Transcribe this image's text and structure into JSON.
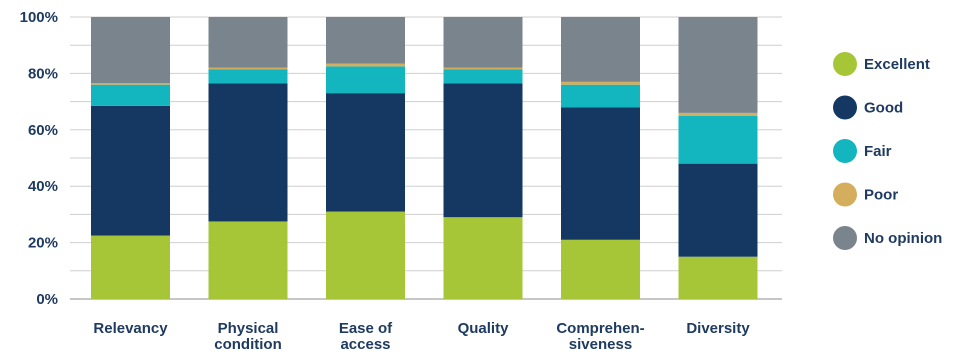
{
  "chart_data": {
    "type": "bar",
    "stacked": true,
    "categories": [
      [
        "Relevancy"
      ],
      [
        "Physical",
        "condition"
      ],
      [
        "Ease of",
        "access"
      ],
      [
        "Quality"
      ],
      [
        "Comprehen-",
        "siveness"
      ],
      [
        "Diversity"
      ]
    ],
    "ylim": [
      0,
      100
    ],
    "yticks": [
      "0%",
      "20%",
      "40%",
      "60%",
      "80%",
      "100%"
    ],
    "grid": true,
    "legend_position": "right",
    "series": [
      {
        "name": "Excellent",
        "color": "#a6c638",
        "values": [
          22.5,
          27.5,
          31,
          29,
          21,
          15
        ]
      },
      {
        "name": "Good",
        "color": "#143862",
        "values": [
          46,
          49,
          42,
          47.5,
          47,
          33
        ]
      },
      {
        "name": "Fair",
        "color": "#13b5bf",
        "values": [
          7.5,
          5,
          9.5,
          5,
          8,
          17
        ]
      },
      {
        "name": "Poor",
        "color": "#d4ad5d",
        "values": [
          0.5,
          0.5,
          1,
          0.5,
          1,
          1
        ]
      },
      {
        "name": "No opinion",
        "color": "#7a848c",
        "values": [
          23.5,
          18,
          16.5,
          18,
          23,
          34
        ]
      }
    ]
  }
}
